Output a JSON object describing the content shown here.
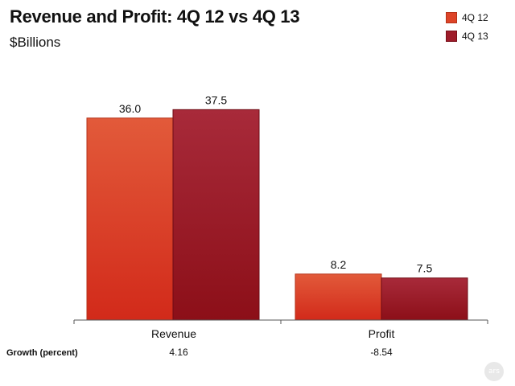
{
  "chart_data": {
    "type": "bar",
    "title": "Revenue and Profit: 4Q 12 vs 4Q 13",
    "subtitle": "$Billions",
    "categories": [
      "Revenue",
      "Profit"
    ],
    "series": [
      {
        "name": "4Q 12",
        "values": [
          36.0,
          8.2
        ],
        "labels": [
          "36.0",
          "8.2"
        ]
      },
      {
        "name": "4Q 13",
        "values": [
          37.5,
          7.5
        ],
        "labels": [
          "37.5",
          "7.5"
        ]
      }
    ],
    "ylim": [
      0,
      45
    ],
    "grid": false,
    "legend_position": "top-right",
    "growth": {
      "label": "Growth (percent)",
      "values": [
        "4.16",
        "-8.54"
      ]
    }
  },
  "colors": {
    "series_4q12": "#dd4428",
    "series_4q13": "#9e1c2a"
  },
  "watermark": "ars"
}
